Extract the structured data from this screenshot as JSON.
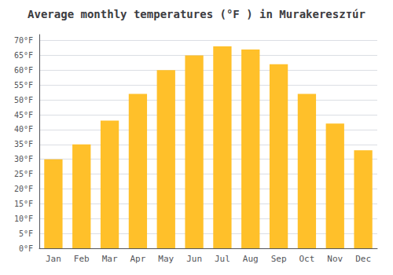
{
  "chart_data": {
    "type": "bar",
    "title": "Average monthly temperatures (°F ) in Murakereszтúr",
    "categories": [
      "Jan",
      "Feb",
      "Mar",
      "Apr",
      "May",
      "Jun",
      "Jul",
      "Aug",
      "Sep",
      "Oct",
      "Nov",
      "Dec"
    ],
    "values": [
      30,
      35,
      43,
      52,
      60,
      65,
      68,
      67,
      62,
      52,
      42,
      33
    ],
    "color": "#FFC02A",
    "ylim": [
      0,
      72
    ],
    "yticks": [
      {
        "value": 0,
        "label": "0°F"
      },
      {
        "value": 5,
        "label": "5°F"
      },
      {
        "value": 10,
        "label": "10°F"
      },
      {
        "value": 15,
        "label": "15°F"
      },
      {
        "value": 20,
        "label": "20°F"
      },
      {
        "value": 25,
        "label": "25°F"
      },
      {
        "value": 30,
        "label": "30°F"
      },
      {
        "value": 35,
        "label": "35°F"
      },
      {
        "value": 40,
        "label": "40°F"
      },
      {
        "value": 45,
        "label": "45°F"
      },
      {
        "value": 50,
        "label": "50°F"
      },
      {
        "value": 55,
        "label": "55°F"
      },
      {
        "value": 60,
        "label": "60°F"
      },
      {
        "value": 65,
        "label": "65°F"
      },
      {
        "value": 70,
        "label": "70°F"
      }
    ],
    "grid": true
  }
}
